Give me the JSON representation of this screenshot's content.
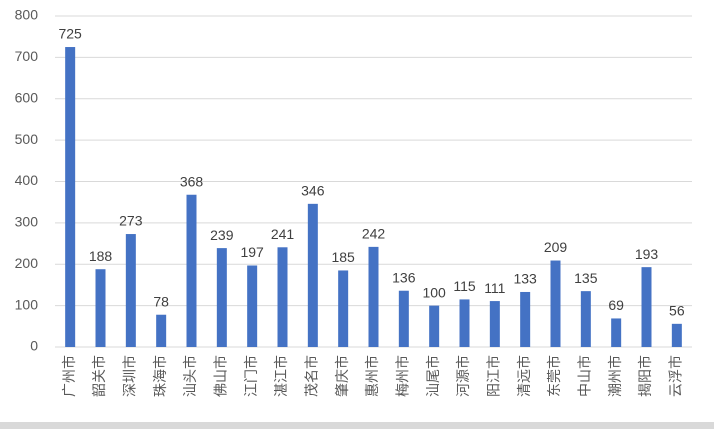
{
  "chart_data": {
    "type": "bar",
    "categories": [
      "广州市",
      "韶关市",
      "深圳市",
      "珠海市",
      "汕头市",
      "佛山市",
      "江门市",
      "湛江市",
      "茂名市",
      "肇庆市",
      "惠州市",
      "梅州市",
      "汕尾市",
      "河源市",
      "阳江市",
      "清远市",
      "东莞市",
      "中山市",
      "潮州市",
      "揭阳市",
      "云浮市"
    ],
    "values": [
      725,
      188,
      273,
      78,
      368,
      239,
      197,
      241,
      346,
      185,
      242,
      136,
      100,
      115,
      111,
      133,
      209,
      135,
      69,
      193,
      56
    ],
    "color": "#4472c4",
    "ylim": [
      0,
      800
    ],
    "yticks": [
      0,
      100,
      200,
      300,
      400,
      500,
      600,
      700,
      800
    ],
    "grid": true
  }
}
